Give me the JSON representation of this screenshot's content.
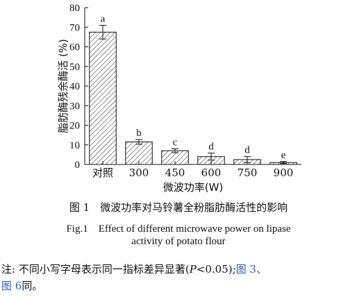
{
  "chart_data": {
    "type": "bar",
    "ylabel": "脂肪酶残余酶活 (%)",
    "xlabel": "微波功率(W)",
    "categories": [
      "对照",
      "300",
      "450",
      "600",
      "750",
      "900"
    ],
    "values": [
      67.5,
      11.5,
      7.0,
      4.0,
      2.5,
      1.0
    ],
    "errors": [
      3.5,
      1.2,
      1.0,
      1.8,
      1.5,
      0.5
    ],
    "significance_letters": [
      "a",
      "b",
      "c",
      "d",
      "d",
      "e"
    ],
    "ylim": [
      0,
      80
    ],
    "yticks": [
      0,
      10,
      20,
      30,
      40,
      50,
      60,
      70,
      80
    ],
    "grid": false,
    "bar_fill": "diagonal-hatch"
  },
  "caption": {
    "cn": "图 1　微波功率对马铃薯全粉脂肪酶活性的影响",
    "en_line1": "Fig.1　Effect of different microwave power on lipase",
    "en_line2": "activity of potato flour"
  },
  "note": {
    "prefix": "注: 不同小写字母表示同一指标差异显著(",
    "p_symbol": "P",
    "p_value": "<0.05);",
    "ref1": "图 3、",
    "ref2": "图 6",
    "suffix": "同。"
  },
  "colors": {
    "ink": "#111111",
    "link": "#2f5fb3"
  }
}
